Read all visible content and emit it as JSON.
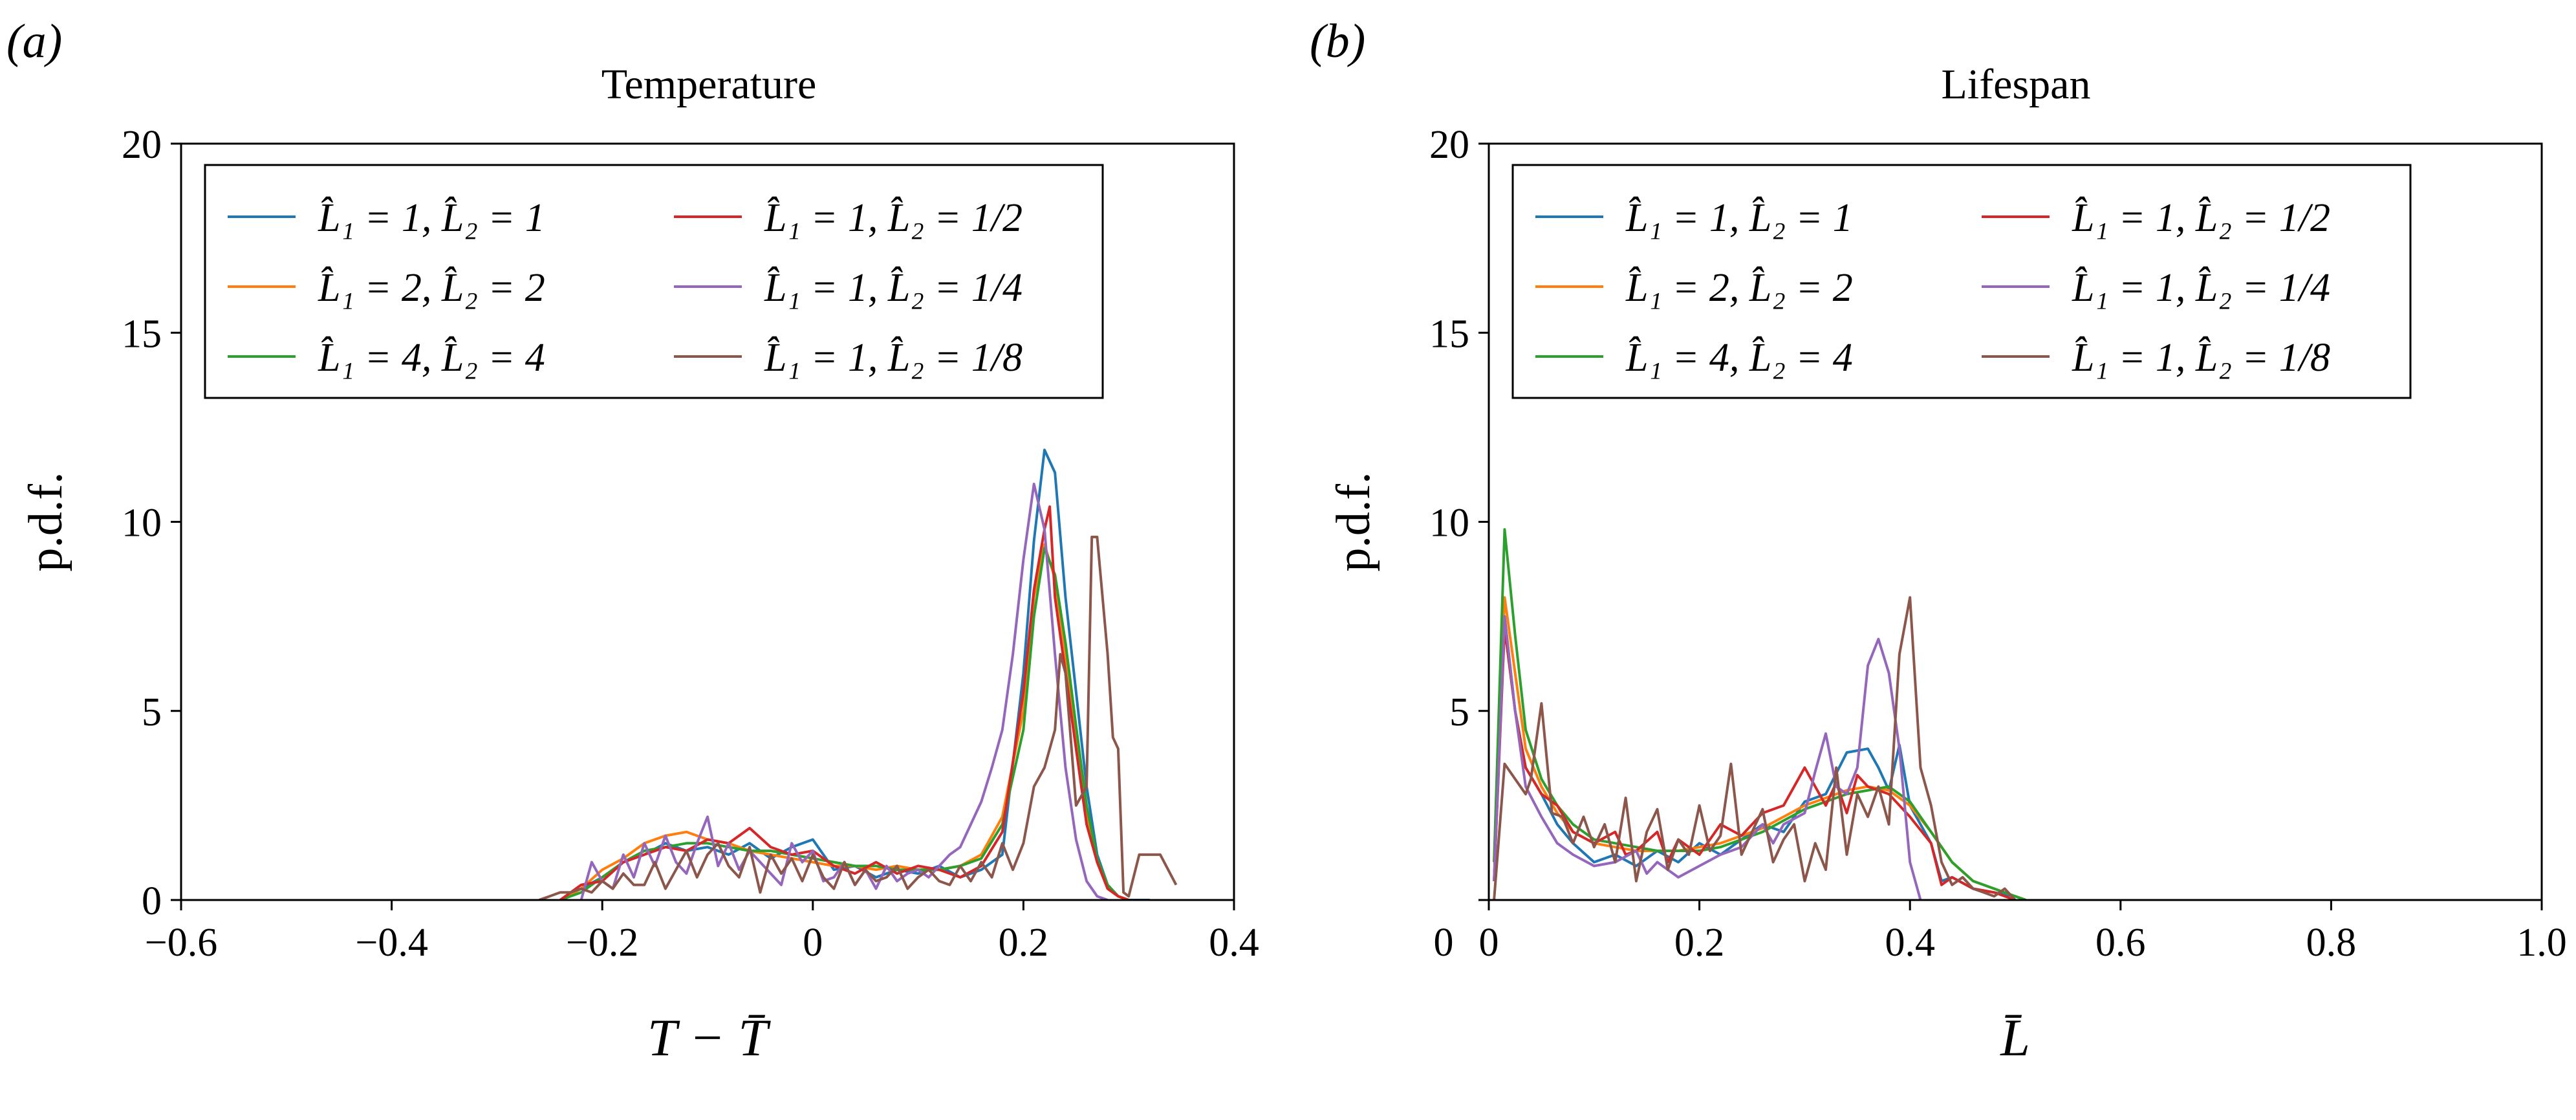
{
  "chart_data": [
    {
      "panel_label": "(a)",
      "type": "line",
      "title": "Temperature",
      "ylabel": "p.d.f.",
      "xlabel": "T − T̄",
      "xlim": [
        -0.6,
        0.4
      ],
      "ylim": [
        0,
        20
      ],
      "xticks": [
        -0.6,
        -0.4,
        -0.2,
        0,
        0.2,
        0.4
      ],
      "xtick_labels": [
        "−0.6",
        "−0.4",
        "−0.2",
        "0",
        "0.2",
        "0.4"
      ],
      "yticks": [
        0,
        5,
        10,
        15,
        20
      ],
      "ytick_labels": [
        "0",
        "5",
        "10",
        "15",
        "20"
      ],
      "grid": false,
      "legend_position": "top-left",
      "series": [
        {
          "name": "L̂₁ = 1, L̂₂ = 1",
          "color": "#1f77b4",
          "x": [
            -0.24,
            -0.22,
            -0.2,
            -0.18,
            -0.16,
            -0.14,
            -0.12,
            -0.1,
            -0.08,
            -0.06,
            -0.04,
            -0.02,
            0,
            0.02,
            0.04,
            0.06,
            0.08,
            0.1,
            0.12,
            0.14,
            0.16,
            0.18,
            0.2,
            0.21,
            0.22,
            0.23,
            0.24,
            0.25,
            0.26,
            0.27,
            0.28,
            0.29,
            0.3,
            0.32
          ],
          "y": [
            0,
            0.3,
            0.6,
            1.0,
            1.2,
            1.5,
            1.3,
            1.4,
            1.2,
            1.5,
            1.1,
            1.4,
            1.6,
            0.8,
            0.9,
            0.6,
            0.8,
            0.7,
            0.9,
            0.6,
            0.8,
            1.2,
            6.0,
            9.5,
            11.9,
            11.3,
            8.0,
            5.5,
            3.0,
            1.2,
            0.4,
            0.1,
            0,
            0
          ]
        },
        {
          "name": "L̂₁ = 2, L̂₂ = 2",
          "color": "#ff7f0e",
          "x": [
            -0.24,
            -0.22,
            -0.2,
            -0.18,
            -0.16,
            -0.14,
            -0.12,
            -0.1,
            -0.08,
            -0.06,
            -0.04,
            -0.02,
            0,
            0.02,
            0.04,
            0.06,
            0.08,
            0.1,
            0.12,
            0.14,
            0.16,
            0.18,
            0.2,
            0.21,
            0.22,
            0.23,
            0.24,
            0.25,
            0.26,
            0.27,
            0.28,
            0.29,
            0.3
          ],
          "y": [
            0,
            0.3,
            0.8,
            1.1,
            1.5,
            1.7,
            1.8,
            1.6,
            1.5,
            1.3,
            1.2,
            1.1,
            1.0,
            0.9,
            0.9,
            0.8,
            0.9,
            0.8,
            0.8,
            0.9,
            1.2,
            2.2,
            5.0,
            8.0,
            9.4,
            8.5,
            6.5,
            4.2,
            2.2,
            1.0,
            0.3,
            0.1,
            0
          ]
        },
        {
          "name": "L̂₁ = 4, L̂₂ = 4",
          "color": "#2ca02c",
          "x": [
            -0.24,
            -0.22,
            -0.2,
            -0.18,
            -0.16,
            -0.14,
            -0.12,
            -0.1,
            -0.08,
            -0.06,
            -0.04,
            -0.02,
            0,
            0.02,
            0.04,
            0.06,
            0.08,
            0.1,
            0.12,
            0.14,
            0.16,
            0.18,
            0.2,
            0.21,
            0.22,
            0.23,
            0.24,
            0.25,
            0.26,
            0.27,
            0.28,
            0.29,
            0.3
          ],
          "y": [
            0,
            0.2,
            0.6,
            1.0,
            1.3,
            1.4,
            1.5,
            1.5,
            1.4,
            1.3,
            1.3,
            1.2,
            1.1,
            1.0,
            0.9,
            0.9,
            0.8,
            0.8,
            0.8,
            0.9,
            1.1,
            2.0,
            4.5,
            7.5,
            9.3,
            8.6,
            6.8,
            4.6,
            2.5,
            1.1,
            0.4,
            0.1,
            0
          ]
        },
        {
          "name": "L̂₁ = 1, L̂₂ = 1/2",
          "color": "#d62728",
          "x": [
            -0.24,
            -0.22,
            -0.2,
            -0.18,
            -0.16,
            -0.14,
            -0.12,
            -0.1,
            -0.08,
            -0.06,
            -0.04,
            -0.02,
            0,
            0.02,
            0.04,
            0.06,
            0.08,
            0.1,
            0.12,
            0.14,
            0.16,
            0.18,
            0.2,
            0.21,
            0.22,
            0.225,
            0.23,
            0.24,
            0.25,
            0.26,
            0.27,
            0.28,
            0.29,
            0.3
          ],
          "y": [
            0,
            0.4,
            0.5,
            1.0,
            1.2,
            1.4,
            1.3,
            1.6,
            1.5,
            1.9,
            1.4,
            1.2,
            1.3,
            0.9,
            0.7,
            1.0,
            0.7,
            0.9,
            0.8,
            0.6,
            0.9,
            1.8,
            5.5,
            8.2,
            9.8,
            10.4,
            8.0,
            6.0,
            4.0,
            2.0,
            1.0,
            0.3,
            0.1,
            0
          ]
        },
        {
          "name": "L̂₁ = 1, L̂₂ = 1/4",
          "color": "#9467bd",
          "x": [
            -0.22,
            -0.21,
            -0.2,
            -0.19,
            -0.18,
            -0.17,
            -0.16,
            -0.15,
            -0.14,
            -0.13,
            -0.12,
            -0.11,
            -0.1,
            -0.09,
            -0.08,
            -0.07,
            -0.06,
            -0.05,
            -0.04,
            -0.03,
            -0.02,
            -0.01,
            0,
            0.01,
            0.02,
            0.03,
            0.04,
            0.05,
            0.06,
            0.07,
            0.08,
            0.09,
            0.1,
            0.11,
            0.12,
            0.13,
            0.14,
            0.15,
            0.16,
            0.17,
            0.18,
            0.19,
            0.2,
            0.21,
            0.22,
            0.23,
            0.24,
            0.25,
            0.26,
            0.27,
            0.28
          ],
          "y": [
            0,
            1.0,
            0.5,
            0.3,
            1.2,
            0.6,
            1.5,
            0.9,
            1.7,
            1.0,
            0.7,
            1.5,
            2.2,
            0.9,
            1.5,
            0.8,
            1.3,
            1.0,
            0.7,
            0.4,
            1.5,
            1.0,
            1.3,
            0.5,
            0.6,
            1.0,
            0.4,
            0.8,
            0.3,
            0.9,
            0.5,
            0.7,
            0.8,
            0.6,
            0.9,
            1.2,
            1.4,
            2.0,
            2.6,
            3.5,
            4.5,
            6.5,
            9.0,
            11.0,
            9.8,
            6.5,
            3.5,
            1.6,
            0.5,
            0.1,
            0
          ]
        },
        {
          "name": "L̂₁ = 1, L̂₂ = 1/8",
          "color": "#8c564b",
          "x": [
            -0.26,
            -0.25,
            -0.24,
            -0.23,
            -0.22,
            -0.21,
            -0.2,
            -0.19,
            -0.18,
            -0.17,
            -0.16,
            -0.15,
            -0.14,
            -0.13,
            -0.12,
            -0.11,
            -0.1,
            -0.09,
            -0.08,
            -0.07,
            -0.06,
            -0.05,
            -0.04,
            -0.03,
            -0.02,
            -0.01,
            0,
            0.01,
            0.02,
            0.03,
            0.04,
            0.05,
            0.06,
            0.07,
            0.08,
            0.09,
            0.1,
            0.11,
            0.12,
            0.13,
            0.14,
            0.15,
            0.16,
            0.17,
            0.18,
            0.19,
            0.2,
            0.21,
            0.22,
            0.23,
            0.235,
            0.24,
            0.25,
            0.26,
            0.265,
            0.27,
            0.28,
            0.285,
            0.29,
            0.295,
            0.3,
            0.31,
            0.32,
            0.33,
            0.345
          ],
          "y": [
            0,
            0.1,
            0.2,
            0.2,
            0.3,
            0.2,
            0.5,
            0.3,
            0.7,
            0.4,
            0.4,
            1.0,
            0.3,
            0.8,
            1.3,
            0.6,
            1.2,
            1.5,
            0.9,
            0.6,
            1.4,
            0.2,
            1.2,
            0.7,
            1.1,
            0.5,
            1.2,
            0.6,
            0.3,
            1.0,
            0.4,
            0.8,
            0.5,
            0.6,
            0.9,
            0.3,
            0.6,
            0.8,
            0.5,
            0.4,
            0.9,
            0.5,
            1.0,
            0.6,
            1.5,
            0.8,
            1.5,
            3.0,
            3.5,
            4.5,
            6.5,
            6.0,
            2.5,
            3.0,
            9.6,
            9.6,
            6.5,
            4.3,
            4.0,
            0.2,
            0.1,
            1.2,
            1.2,
            1.2,
            0.4
          ]
        }
      ]
    },
    {
      "panel_label": "(b)",
      "type": "line",
      "title": "Lifespan",
      "ylabel": "p.d.f.",
      "xlabel": "L̄",
      "xlim": [
        0,
        1.0
      ],
      "ylim": [
        0,
        20
      ],
      "xticks": [
        0,
        0.2,
        0.4,
        0.6,
        0.8,
        1.0
      ],
      "xtick_labels": [
        "0",
        "0.2",
        "0.4",
        "0.6",
        "0.8",
        "1.0"
      ],
      "yticks": [
        0,
        5,
        10,
        15,
        20
      ],
      "ytick_labels": [
        "",
        "5",
        "10",
        "15",
        "20"
      ],
      "grid": false,
      "legend_position": "top-left",
      "series": [
        {
          "name": "L̂₁ = 1, L̂₂ = 1",
          "color": "#1f77b4",
          "x": [
            0.005,
            0.015,
            0.025,
            0.035,
            0.05,
            0.065,
            0.08,
            0.1,
            0.12,
            0.14,
            0.16,
            0.18,
            0.2,
            0.22,
            0.24,
            0.26,
            0.28,
            0.3,
            0.32,
            0.34,
            0.36,
            0.37,
            0.38,
            0.39,
            0.4,
            0.41,
            0.42,
            0.43,
            0.44,
            0.46,
            0.48,
            0.5,
            0.51
          ],
          "y": [
            0.5,
            7.5,
            5.0,
            3.5,
            2.8,
            2.0,
            1.5,
            1.0,
            1.2,
            0.9,
            1.3,
            1.0,
            1.5,
            1.2,
            1.6,
            2.0,
            1.8,
            2.6,
            2.8,
            3.9,
            4.0,
            3.5,
            2.9,
            4.1,
            2.5,
            2.0,
            1.5,
            0.5,
            0.6,
            0.3,
            0.2,
            0.1,
            0
          ]
        },
        {
          "name": "L̂₁ = 2, L̂₂ = 2",
          "color": "#ff7f0e",
          "x": [
            0.005,
            0.015,
            0.025,
            0.035,
            0.05,
            0.065,
            0.08,
            0.1,
            0.12,
            0.14,
            0.16,
            0.18,
            0.2,
            0.22,
            0.24,
            0.26,
            0.28,
            0.3,
            0.32,
            0.34,
            0.36,
            0.38,
            0.4,
            0.42,
            0.44,
            0.46,
            0.48,
            0.5,
            0.51
          ],
          "y": [
            1.0,
            8.0,
            6.0,
            4.0,
            3.0,
            2.3,
            1.8,
            1.5,
            1.4,
            1.3,
            1.3,
            1.3,
            1.4,
            1.5,
            1.7,
            1.9,
            2.2,
            2.5,
            2.7,
            2.9,
            3.0,
            2.9,
            2.5,
            1.8,
            1.0,
            0.5,
            0.3,
            0.1,
            0
          ]
        },
        {
          "name": "L̂₁ = 4, L̂₂ = 4",
          "color": "#2ca02c",
          "x": [
            0.005,
            0.015,
            0.025,
            0.035,
            0.05,
            0.065,
            0.08,
            0.1,
            0.12,
            0.14,
            0.16,
            0.18,
            0.2,
            0.22,
            0.24,
            0.26,
            0.28,
            0.3,
            0.32,
            0.34,
            0.36,
            0.38,
            0.4,
            0.42,
            0.44,
            0.46,
            0.48,
            0.5,
            0.51
          ],
          "y": [
            1.0,
            9.8,
            7.0,
            4.5,
            3.2,
            2.5,
            2.0,
            1.6,
            1.5,
            1.4,
            1.3,
            1.3,
            1.3,
            1.4,
            1.6,
            1.8,
            2.1,
            2.4,
            2.6,
            2.8,
            2.9,
            3.0,
            2.6,
            1.8,
            1.0,
            0.5,
            0.3,
            0.1,
            0
          ]
        },
        {
          "name": "L̂₁ = 1, L̂₂ = 1/2",
          "color": "#d62728",
          "x": [
            0.005,
            0.015,
            0.025,
            0.035,
            0.05,
            0.065,
            0.08,
            0.1,
            0.12,
            0.13,
            0.14,
            0.16,
            0.17,
            0.18,
            0.2,
            0.22,
            0.24,
            0.26,
            0.28,
            0.3,
            0.31,
            0.32,
            0.33,
            0.34,
            0.35,
            0.36,
            0.38,
            0.4,
            0.42,
            0.43,
            0.44,
            0.46,
            0.48,
            0.5
          ],
          "y": [
            0.5,
            7.2,
            5.0,
            3.5,
            2.8,
            2.5,
            1.8,
            1.5,
            1.8,
            1.2,
            1.3,
            1.8,
            1.0,
            1.6,
            1.2,
            2.0,
            1.7,
            2.3,
            2.5,
            3.5,
            3.0,
            2.5,
            3.1,
            2.3,
            3.3,
            3.0,
            2.8,
            2.2,
            1.5,
            0.4,
            0.6,
            0.3,
            0.2,
            0
          ]
        },
        {
          "name": "L̂₁ = 1, L̂₂ = 1/4",
          "color": "#9467bd",
          "x": [
            0.005,
            0.015,
            0.025,
            0.035,
            0.05,
            0.065,
            0.08,
            0.1,
            0.12,
            0.14,
            0.15,
            0.16,
            0.17,
            0.18,
            0.2,
            0.22,
            0.24,
            0.26,
            0.27,
            0.28,
            0.3,
            0.31,
            0.32,
            0.33,
            0.34,
            0.35,
            0.36,
            0.37,
            0.38,
            0.39,
            0.4,
            0.41
          ],
          "y": [
            0.5,
            7.5,
            5.0,
            3.0,
            2.2,
            1.5,
            1.2,
            0.9,
            1.0,
            1.3,
            0.7,
            1.0,
            0.8,
            0.6,
            0.9,
            1.2,
            1.4,
            2.0,
            1.5,
            2.0,
            2.3,
            3.4,
            4.4,
            3.0,
            2.8,
            3.5,
            6.2,
            6.9,
            6.0,
            4.0,
            1.0,
            0
          ]
        },
        {
          "name": "L̂₁ = 1, L̂₂ = 1/8",
          "color": "#8c564b",
          "x": [
            0.005,
            0.015,
            0.025,
            0.035,
            0.04,
            0.05,
            0.06,
            0.07,
            0.08,
            0.09,
            0.1,
            0.11,
            0.12,
            0.13,
            0.14,
            0.15,
            0.16,
            0.17,
            0.18,
            0.19,
            0.2,
            0.21,
            0.22,
            0.23,
            0.24,
            0.25,
            0.26,
            0.27,
            0.28,
            0.29,
            0.3,
            0.31,
            0.32,
            0.33,
            0.34,
            0.35,
            0.36,
            0.37,
            0.38,
            0.39,
            0.4,
            0.41,
            0.42,
            0.43,
            0.44,
            0.45,
            0.46,
            0.47,
            0.48,
            0.49,
            0.5
          ],
          "y": [
            0,
            3.6,
            3.2,
            2.8,
            3.2,
            5.2,
            2.3,
            2.2,
            1.5,
            2.2,
            1.4,
            2.0,
            1.0,
            2.7,
            0.5,
            1.8,
            2.4,
            0.8,
            1.6,
            1.2,
            2.5,
            1.3,
            1.7,
            3.6,
            1.2,
            1.8,
            2.4,
            1.0,
            1.6,
            2.0,
            0.5,
            1.5,
            0.8,
            3.5,
            1.2,
            2.8,
            2.2,
            3.0,
            2.0,
            6.5,
            8.0,
            3.5,
            2.5,
            1.0,
            0.4,
            0.6,
            0.3,
            0.2,
            0.1,
            0.3,
            0
          ]
        }
      ]
    }
  ]
}
